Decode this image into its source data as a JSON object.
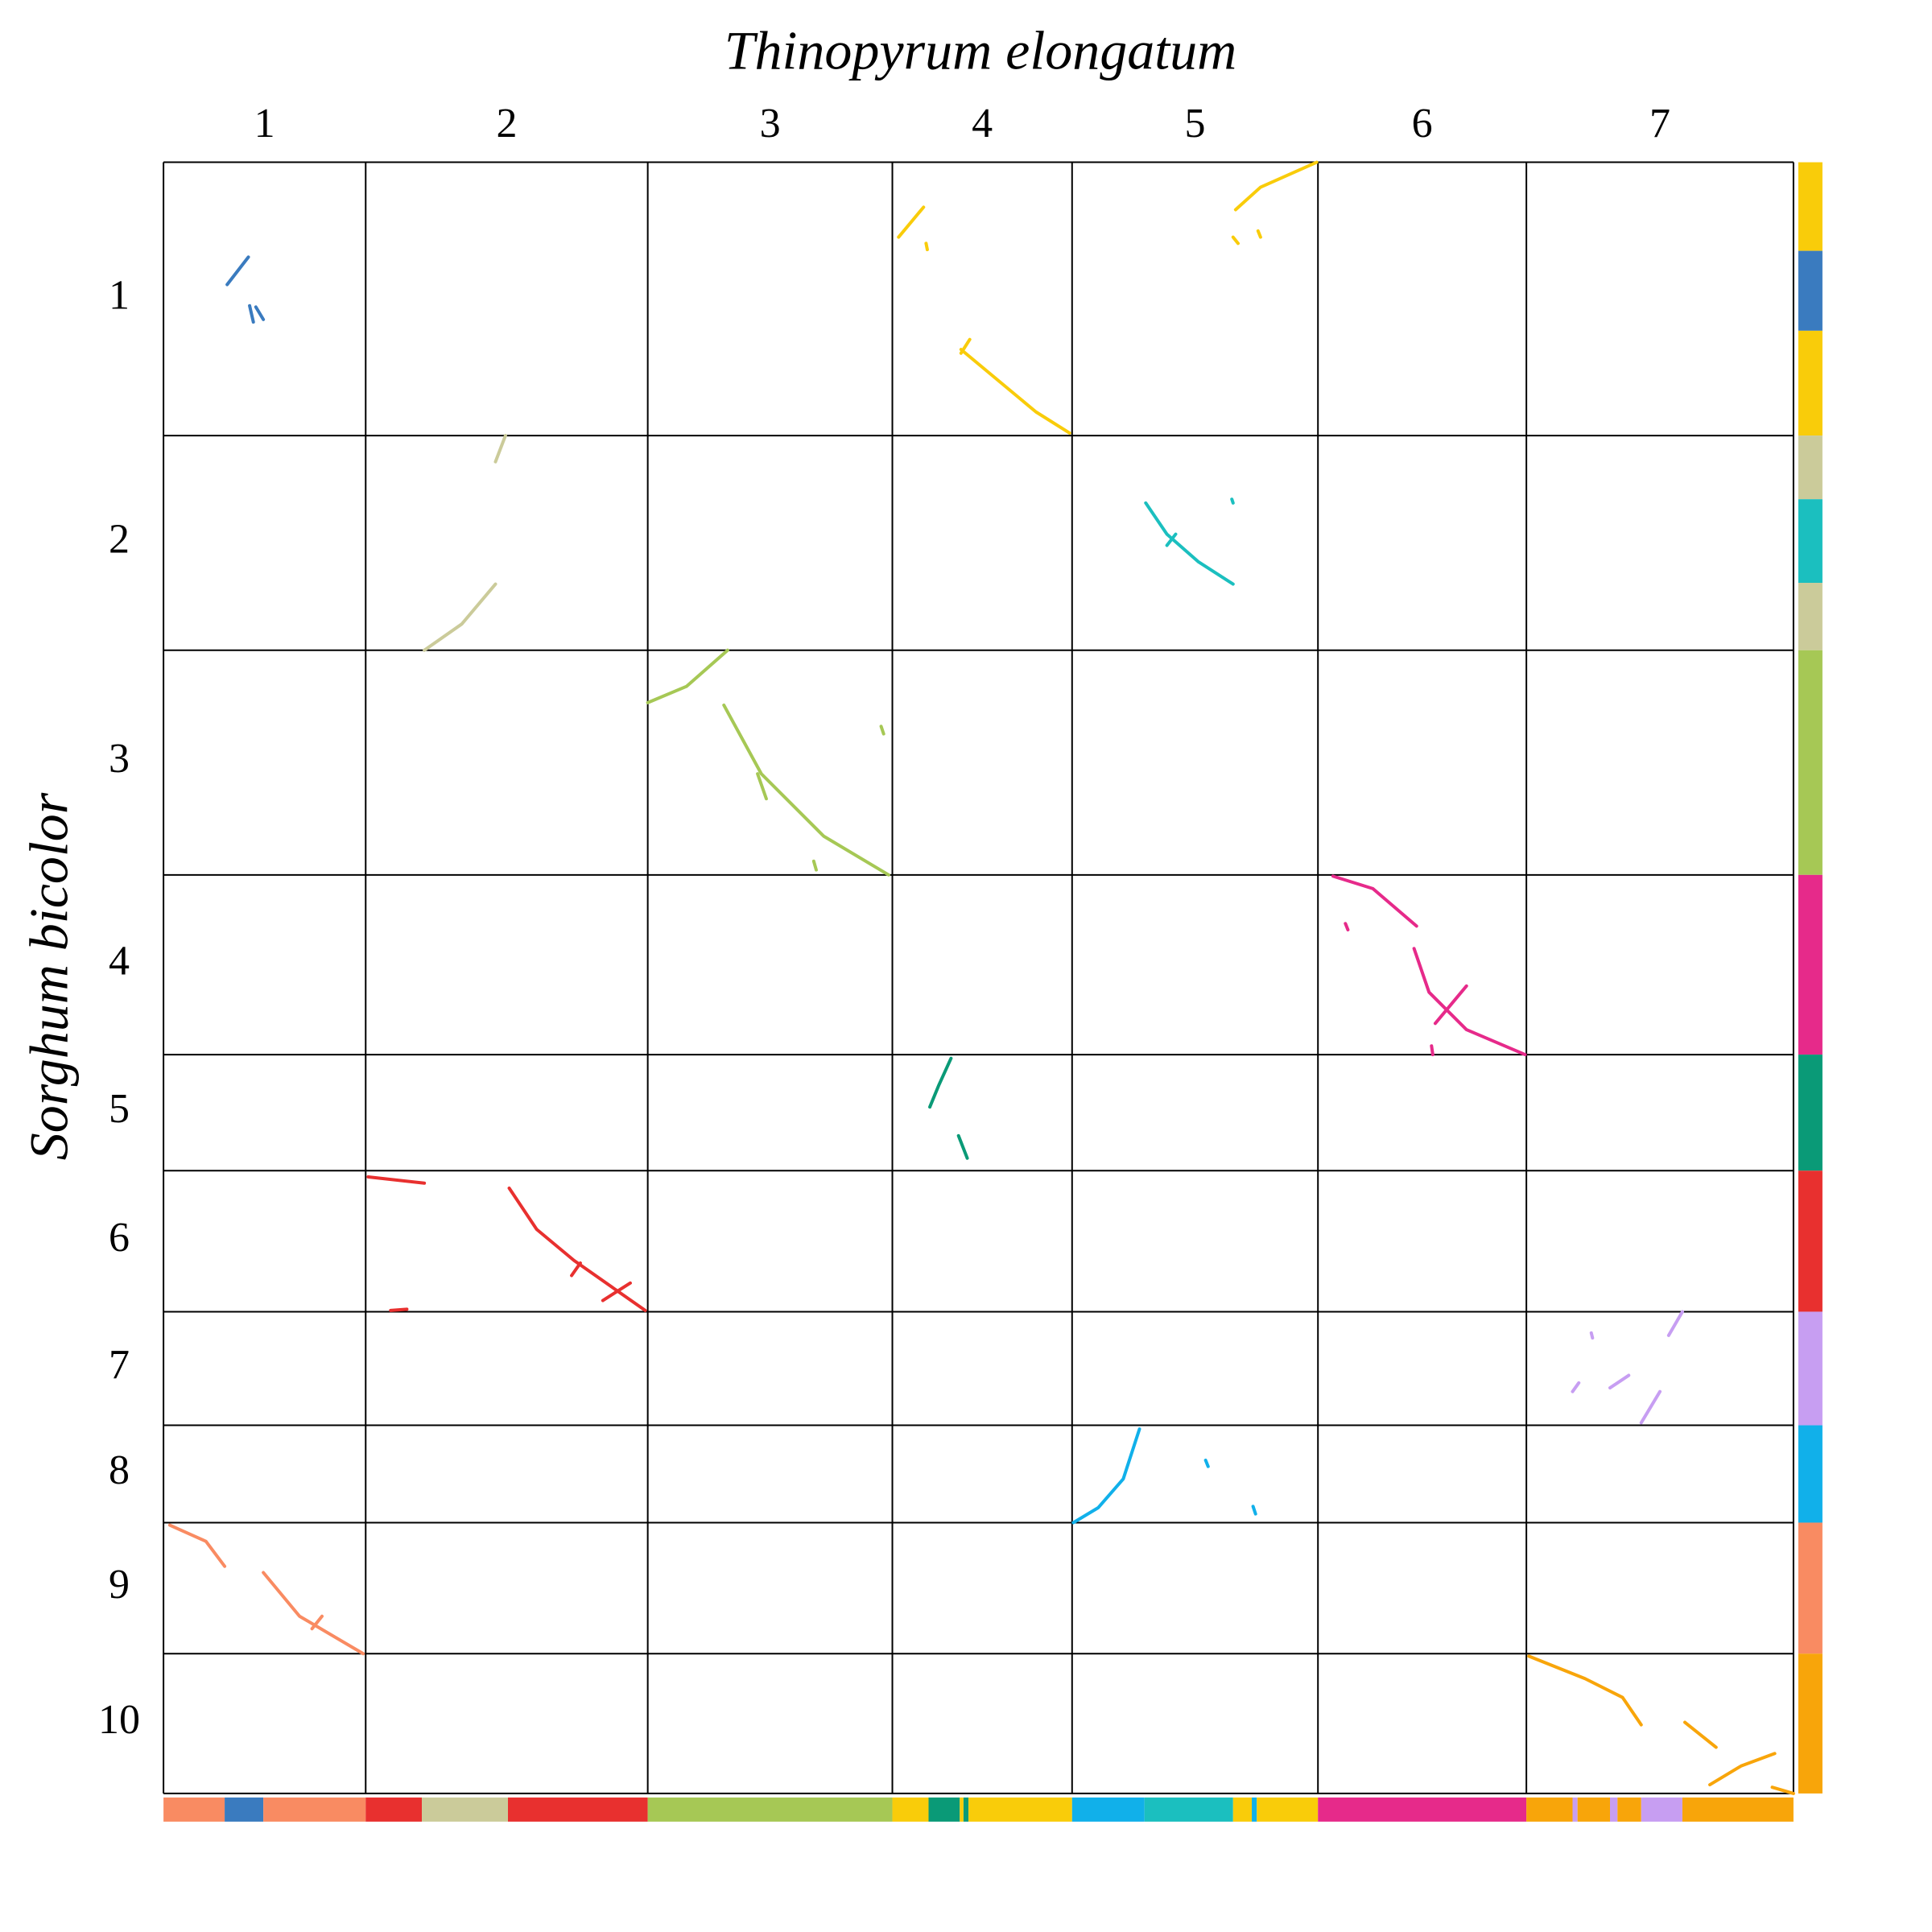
{
  "chart_data": {
    "type": "dotplot",
    "title": "Thinopyrum elongatum",
    "ylabel": "Sorghum bicolor",
    "x_chromosomes": {
      "names": [
        "1",
        "2",
        "3",
        "4",
        "5",
        "6",
        "7"
      ],
      "sizes": [
        162,
        226,
        196,
        144,
        197,
        167,
        214
      ]
    },
    "y_chromosomes": {
      "names": [
        "1",
        "2",
        "3",
        "4",
        "5",
        "6",
        "7",
        "8",
        "9",
        "10"
      ],
      "sizes": [
        219,
        172,
        180,
        144,
        93,
        113,
        91,
        78,
        105,
        112
      ]
    },
    "x_blocks": [
      {
        "start": 0,
        "end": 49,
        "color": "#f98b62"
      },
      {
        "start": 49,
        "end": 80,
        "color": "#3a7bbf"
      },
      {
        "start": 80,
        "end": 162,
        "color": "#f98b62"
      },
      {
        "start": 162,
        "end": 207,
        "color": "#e8302f"
      },
      {
        "start": 207,
        "end": 276,
        "color": "#cbcb9a"
      },
      {
        "start": 276,
        "end": 388,
        "color": "#e8302f"
      },
      {
        "start": 388,
        "end": 584,
        "color": "#a6c855"
      },
      {
        "start": 584,
        "end": 613,
        "color": "#f9cc0a"
      },
      {
        "start": 613,
        "end": 638,
        "color": "#0a9a77"
      },
      {
        "start": 638,
        "end": 641,
        "color": "#f9cc0a"
      },
      {
        "start": 641,
        "end": 645,
        "color": "#0a9a77"
      },
      {
        "start": 645,
        "end": 728,
        "color": "#f9cc0a"
      },
      {
        "start": 728,
        "end": 786,
        "color": "#11b0ea"
      },
      {
        "start": 786,
        "end": 857,
        "color": "#1bbfbf"
      },
      {
        "start": 857,
        "end": 872,
        "color": "#f9cc0a"
      },
      {
        "start": 872,
        "end": 876,
        "color": "#11b0ea"
      },
      {
        "start": 876,
        "end": 925,
        "color": "#f9cc0a"
      },
      {
        "start": 925,
        "end": 1092,
        "color": "#e62a8a"
      },
      {
        "start": 1092,
        "end": 1129,
        "color": "#f8a50a"
      },
      {
        "start": 1129,
        "end": 1133,
        "color": "#c79ef2"
      },
      {
        "start": 1133,
        "end": 1159,
        "color": "#f8a50a"
      },
      {
        "start": 1159,
        "end": 1165,
        "color": "#c79ef2"
      },
      {
        "start": 1165,
        "end": 1184,
        "color": "#f8a50a"
      },
      {
        "start": 1184,
        "end": 1217,
        "color": "#c79ef2"
      },
      {
        "start": 1217,
        "end": 1306,
        "color": "#f8a50a"
      }
    ],
    "y_blocks": [
      {
        "start": 0,
        "end": 71,
        "color": "#f9cc0a"
      },
      {
        "start": 71,
        "end": 135,
        "color": "#3a7bbf"
      },
      {
        "start": 135,
        "end": 219,
        "color": "#f9cc0a"
      },
      {
        "start": 219,
        "end": 270,
        "color": "#cbcb9a"
      },
      {
        "start": 270,
        "end": 337,
        "color": "#1bbfbf"
      },
      {
        "start": 337,
        "end": 391,
        "color": "#cbcb9a"
      },
      {
        "start": 391,
        "end": 571,
        "color": "#a6c855"
      },
      {
        "start": 571,
        "end": 715,
        "color": "#e62a8a"
      },
      {
        "start": 715,
        "end": 808,
        "color": "#0a9a77"
      },
      {
        "start": 808,
        "end": 921,
        "color": "#e8302f"
      },
      {
        "start": 921,
        "end": 1012,
        "color": "#c79ef2"
      },
      {
        "start": 1012,
        "end": 1090,
        "color": "#11b0ea"
      },
      {
        "start": 1090,
        "end": 1195,
        "color": "#f98b62"
      },
      {
        "start": 1195,
        "end": 1307,
        "color": "#f8a50a"
      }
    ],
    "segments": [
      {
        "color": "#3a7bbf",
        "x": [
          51,
          68
        ],
        "y": [
          98,
          76
        ]
      },
      {
        "color": "#3a7bbf",
        "x": [
          69,
          72
        ],
        "y": [
          115,
          128
        ]
      },
      {
        "color": "#3a7bbf",
        "x": [
          74,
          80
        ],
        "y": [
          116,
          126
        ]
      },
      {
        "color": "#f9cc0a",
        "x": [
          589,
          609
        ],
        "y": [
          60,
          36
        ]
      },
      {
        "color": "#f9cc0a",
        "x": [
          611,
          612
        ],
        "y": [
          65,
          70
        ]
      },
      {
        "color": "#f9cc0a",
        "x": [
          639,
          699,
          726
        ],
        "y": [
          150,
          200,
          217
        ]
      },
      {
        "color": "#f9cc0a",
        "x": [
          639,
          646
        ],
        "y": [
          153,
          142
        ]
      },
      {
        "color": "#f9cc0a",
        "x": [
          859,
          879,
          924
        ],
        "y": [
          38,
          20,
          0
        ]
      },
      {
        "color": "#f9cc0a",
        "x": [
          857,
          861
        ],
        "y": [
          60,
          65
        ]
      },
      {
        "color": "#f9cc0a",
        "x": [
          877,
          879
        ],
        "y": [
          55,
          60
        ]
      },
      {
        "color": "#cbcb9a",
        "x": [
          209,
          239,
          266
        ],
        "y": [
          391,
          370,
          338
        ]
      },
      {
        "color": "#cbcb9a",
        "x": [
          266,
          274
        ],
        "y": [
          240,
          219
        ]
      },
      {
        "color": "#1bbfbf",
        "x": [
          787,
          804,
          829,
          857
        ],
        "y": [
          273,
          298,
          320,
          338
        ]
      },
      {
        "color": "#1bbfbf",
        "x": [
          856,
          857
        ],
        "y": [
          270,
          273
        ]
      },
      {
        "color": "#1bbfbf",
        "x": [
          804,
          811
        ],
        "y": [
          307,
          298
        ]
      },
      {
        "color": "#a6c855",
        "x": [
          388,
          419,
          452
        ],
        "y": [
          433,
          420,
          391
        ]
      },
      {
        "color": "#a6c855",
        "x": [
          449,
          479,
          529,
          581
        ],
        "y": [
          435,
          490,
          540,
          571
        ]
      },
      {
        "color": "#a6c855",
        "x": [
          575,
          577
        ],
        "y": [
          452,
          458
        ]
      },
      {
        "color": "#a6c855",
        "x": [
          521,
          523
        ],
        "y": [
          560,
          567
        ]
      },
      {
        "color": "#a6c855",
        "x": [
          476,
          483
        ],
        "y": [
          490,
          510
        ]
      },
      {
        "color": "#e62a8a",
        "x": [
          937,
          969,
          1004
        ],
        "y": [
          572,
          582,
          612
        ]
      },
      {
        "color": "#e62a8a",
        "x": [
          1002,
          1014,
          1044,
          1091
        ],
        "y": [
          630,
          665,
          695,
          715
        ]
      },
      {
        "color": "#e62a8a",
        "x": [
          1019,
          1044
        ],
        "y": [
          690,
          660
        ]
      },
      {
        "color": "#e62a8a",
        "x": [
          947,
          949
        ],
        "y": [
          610,
          615
        ]
      },
      {
        "color": "#e62a8a",
        "x": [
          1016,
          1017
        ],
        "y": [
          708,
          715
        ]
      },
      {
        "color": "#0a9a77",
        "x": [
          614,
          621,
          631
        ],
        "y": [
          757,
          740,
          718
        ]
      },
      {
        "color": "#0a9a77",
        "x": [
          637,
          644
        ],
        "y": [
          780,
          798
        ]
      },
      {
        "color": "#e8302f",
        "x": [
          277,
          299,
          329,
          386
        ],
        "y": [
          822,
          855,
          880,
          920
        ]
      },
      {
        "color": "#e8302f",
        "x": [
          164,
          209
        ],
        "y": [
          813,
          818
        ]
      },
      {
        "color": "#e8302f",
        "x": [
          182,
          195
        ],
        "y": [
          920,
          919
        ]
      },
      {
        "color": "#e8302f",
        "x": [
          352,
          374
        ],
        "y": [
          912,
          898
        ]
      },
      {
        "color": "#e8302f",
        "x": [
          327,
          334
        ],
        "y": [
          892,
          882
        ]
      },
      {
        "color": "#c79ef2",
        "x": [
          1184,
          1199
        ],
        "y": [
          1010,
          985
        ]
      },
      {
        "color": "#c79ef2",
        "x": [
          1206,
          1217
        ],
        "y": [
          940,
          921
        ]
      },
      {
        "color": "#c79ef2",
        "x": [
          1129,
          1134
        ],
        "y": [
          985,
          978
        ]
      },
      {
        "color": "#c79ef2",
        "x": [
          1159,
          1174
        ],
        "y": [
          982,
          972
        ]
      },
      {
        "color": "#c79ef2",
        "x": [
          1144,
          1145
        ],
        "y": [
          938,
          942
        ]
      },
      {
        "color": "#11b0ea",
        "x": [
          729,
          749,
          769,
          782
        ],
        "y": [
          1090,
          1078,
          1055,
          1015
        ]
      },
      {
        "color": "#11b0ea",
        "x": [
          835,
          837
        ],
        "y": [
          1040,
          1045
        ]
      },
      {
        "color": "#11b0ea",
        "x": [
          873,
          875
        ],
        "y": [
          1077,
          1083
        ]
      },
      {
        "color": "#f98b62",
        "x": [
          5,
          34,
          49
        ],
        "y": [
          1092,
          1105,
          1125
        ]
      },
      {
        "color": "#f98b62",
        "x": [
          80,
          109,
          160
        ],
        "y": [
          1130,
          1165,
          1195
        ]
      },
      {
        "color": "#f98b62",
        "x": [
          119,
          127
        ],
        "y": [
          1175,
          1165
        ]
      },
      {
        "color": "#f8a50a",
        "x": [
          1094,
          1139,
          1169,
          1184
        ],
        "y": [
          1197,
          1215,
          1230,
          1252
        ]
      },
      {
        "color": "#f8a50a",
        "x": [
          1219,
          1244
        ],
        "y": [
          1250,
          1270
        ]
      },
      {
        "color": "#f8a50a",
        "x": [
          1239,
          1264,
          1291
        ],
        "y": [
          1300,
          1285,
          1275
        ]
      },
      {
        "color": "#f8a50a",
        "x": [
          1289,
          1306
        ],
        "y": [
          1302,
          1307
        ]
      }
    ]
  }
}
